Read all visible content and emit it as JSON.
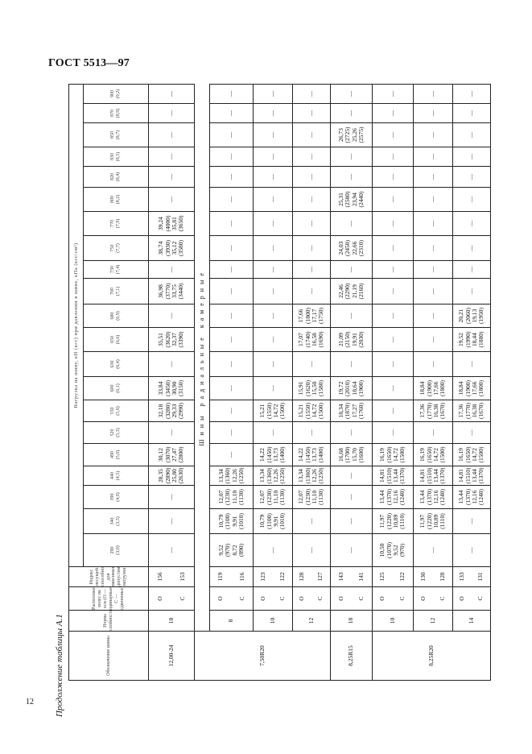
{
  "header": {
    "doc_title": "ГОСТ 5513—97",
    "page_number": "12",
    "caption": "Продолжение таблицы А.1"
  },
  "table": {
    "col_designation": "Обозначение шины",
    "col_ply": "Норма слойности",
    "col_position": "Расположение колес на оси (О — одинарные, С — сдвоенные)",
    "col_index": "Индекс несущей способности для максимально допустимой нагрузки",
    "load_title": "Нагрузка на шину, кН (кгс) при давлении в шине, кПа (кгс/см²)",
    "pressures": [
      {
        "kpa": "290",
        "kgf": "(3,0)"
      },
      {
        "kpa": "340",
        "kgf": "(3,5)"
      },
      {
        "kpa": "390",
        "kgf": "(4,0)"
      },
      {
        "kpa": "440",
        "kgf": "(4,5)"
      },
      {
        "kpa": "490",
        "kgf": "(5,0)"
      },
      {
        "kpa": "520",
        "kgf": "(5,3)"
      },
      {
        "kpa": "550",
        "kgf": "(5,6)"
      },
      {
        "kpa": "600",
        "kgf": "(6,1)"
      },
      {
        "kpa": "630",
        "kgf": "(6,4)"
      },
      {
        "kpa": "650",
        "kgf": "(6,6)"
      },
      {
        "kpa": "680",
        "kgf": "(6,9)"
      },
      {
        "kpa": "700",
        "kgf": "(7,1)"
      },
      {
        "kpa": "730",
        "kgf": "(7,4)"
      },
      {
        "kpa": "750",
        "kgf": "(7,7)"
      },
      {
        "kpa": "770",
        "kgf": "(7,9)"
      },
      {
        "kpa": "800",
        "kgf": "(8,2)"
      },
      {
        "kpa": "820",
        "kgf": "(8,4)"
      },
      {
        "kpa": "830",
        "kgf": "(8,5)"
      },
      {
        "kpa": "850",
        "kgf": "(8,7)"
      },
      {
        "kpa": "870",
        "kgf": "(8,9)"
      },
      {
        "kpa": "900",
        "kgf": "(9,2)"
      }
    ],
    "dash": "—",
    "section_title": "Шины радиальные камерные",
    "groups": [
      {
        "designation": "12,00-24",
        "ply": "18",
        "positions": [
          "О",
          "С"
        ],
        "index": [
          "156",
          "153"
        ],
        "loads": [
          null,
          null,
          null,
          [
            "28,35",
            "(2890)",
            "25,80",
            "(2630)"
          ],
          [
            "30,12",
            "(3070)",
            "27,47",
            "(2800)"
          ],
          null,
          [
            "32,18",
            "(3280)",
            "29,33",
            "(2990)"
          ],
          [
            "33,84",
            "(3450)",
            "30,90",
            "(3150)"
          ],
          null,
          [
            "35,51",
            "(3620)",
            "32,37",
            "(3390)"
          ],
          null,
          [
            "36,98",
            "(3770)",
            "33,75",
            "(3440)"
          ],
          null,
          [
            "38,74",
            "(3930)",
            "35,12",
            "(3580)"
          ],
          [
            "39,24",
            "(4000)",
            "35,81",
            "(3650)"
          ],
          null,
          null,
          null,
          null,
          null,
          null
        ]
      },
      {
        "designation": "7,50R20",
        "ply": "8",
        "positions": [
          "О",
          "С"
        ],
        "index": [
          "119",
          "116"
        ],
        "loads": [
          [
            "9,52",
            "(970)",
            "8,72",
            "(890)"
          ],
          [
            "10,79",
            "(1100)",
            "9,91",
            "(1010)"
          ],
          [
            "12,07",
            "(1230)",
            "11,10",
            "(1130)"
          ],
          [
            "13,34",
            "(1360)",
            "12,26",
            "(1250)"
          ],
          null,
          null,
          null,
          null,
          null,
          null,
          null,
          null,
          null,
          null,
          null,
          null,
          null,
          null,
          null,
          null,
          null
        ]
      },
      {
        "designation": "7,50R20",
        "ply": "10",
        "positions": [
          "О",
          "С"
        ],
        "index": [
          "123",
          "122"
        ],
        "loads": [
          null,
          [
            "10,79",
            "(1100)",
            "9,91",
            "(1010)"
          ],
          [
            "12,07",
            "(1230)",
            "11,10",
            "(1130)"
          ],
          [
            "13,34",
            "(1360)",
            "12,26",
            "(1250)"
          ],
          [
            "14,22",
            "(1450)",
            "13,73",
            "(1400)"
          ],
          null,
          [
            "15,21",
            "(1550)",
            "14,72",
            "(1500)"
          ],
          null,
          null,
          null,
          null,
          null,
          null,
          null,
          null,
          null,
          null,
          null,
          null,
          null,
          null
        ]
      },
      {
        "designation": "7,50R20",
        "ply": "12",
        "positions": [
          "О",
          "С"
        ],
        "index": [
          "128",
          "127"
        ],
        "loads": [
          null,
          null,
          [
            "12,07",
            "(1230)",
            "11,10",
            "(1130)"
          ],
          [
            "13,34",
            "(1360)",
            "12,26",
            "(1250)"
          ],
          [
            "14,22",
            "(1450)",
            "13,73",
            "(1400)"
          ],
          null,
          [
            "15,21",
            "(1550)",
            "14,72",
            "(1500)"
          ],
          [
            "15,91",
            "(1620)",
            "15,50",
            "(1580)"
          ],
          null,
          [
            "17,07",
            "(1740)",
            "16,58",
            "(1690)"
          ],
          [
            "17,66",
            "(1800)",
            "17,17",
            "(1750)"
          ],
          null,
          null,
          null,
          null,
          null,
          null,
          null,
          null,
          null,
          null
        ]
      },
      {
        "designation": "8,25R15",
        "ply": "18",
        "positions": [
          "О",
          "С"
        ],
        "index": [
          "143",
          "141"
        ],
        "loads": [
          null,
          null,
          null,
          null,
          [
            "16,68",
            "(1700)",
            "15,70",
            "(1600)"
          ],
          null,
          [
            "18,34",
            "(1870)",
            "17,27",
            "(1760)"
          ],
          [
            "19,72",
            "(2010)",
            "18,64",
            "(1900)"
          ],
          null,
          [
            "21,09",
            "(2150)",
            "19,91",
            "(2030)"
          ],
          null,
          [
            "22,46",
            "(2290)",
            "21,19",
            "(2160)"
          ],
          null,
          [
            "24,03",
            "(2450)",
            "22,66",
            "(2310)"
          ],
          null,
          [
            "25,31",
            "(2580)",
            "23,94",
            "(2440)"
          ],
          null,
          null,
          [
            "26,73",
            "(2725)",
            "25,26",
            "(2575)"
          ],
          null,
          null
        ]
      },
      {
        "designation": "8,25R20",
        "ply": "10",
        "positions": [
          "О",
          "С"
        ],
        "index": [
          "125",
          "122"
        ],
        "loads": [
          [
            "10,50",
            "(1070)",
            "9,52",
            "(970)"
          ],
          [
            "11,97",
            "(1220)",
            "10,89",
            "(1110)"
          ],
          [
            "13,44",
            "(1370)",
            "12,16",
            "(1240)"
          ],
          [
            "14,81",
            "(1510)",
            "13,44",
            "(1370)"
          ],
          [
            "16,19",
            "(1650)",
            "14,72",
            "(1500)"
          ],
          null,
          null,
          null,
          null,
          null,
          null,
          null,
          null,
          null,
          null,
          null,
          null,
          null,
          null,
          null,
          null
        ]
      },
      {
        "designation": "8,25R20",
        "ply": "12",
        "positions": [
          "О",
          "С"
        ],
        "index": [
          "130",
          "128"
        ],
        "loads": [
          null,
          [
            "11,97",
            "(1220)",
            "10,89",
            "(1110)"
          ],
          [
            "13,44",
            "(1370)",
            "12,16",
            "(1240)"
          ],
          [
            "14,81",
            "(1510)",
            "13,44",
            "(1370)"
          ],
          [
            "16,19",
            "(1650)",
            "14,72",
            "(1500)"
          ],
          null,
          [
            "17,36",
            "(1770)",
            "16,38",
            "(1670)"
          ],
          [
            "18,84",
            "(1900)",
            "17,66",
            "(1800)"
          ],
          null,
          null,
          null,
          null,
          null,
          null,
          null,
          null,
          null,
          null,
          null,
          null,
          null
        ]
      },
      {
        "designation": "8,25R20",
        "ply": "14",
        "positions": [
          "О",
          "С"
        ],
        "index": [
          "133",
          "131"
        ],
        "loads": [
          null,
          null,
          [
            "13,44",
            "(1370)",
            "12,16",
            "(1240)"
          ],
          [
            "14,81",
            "(1510)",
            "13,44",
            "(1370)"
          ],
          [
            "16,19",
            "(1650)",
            "14,72",
            "(1500)"
          ],
          null,
          [
            "17,36",
            "(1770)",
            "16,38",
            "(1670)"
          ],
          [
            "18,84",
            "(1900)",
            "17,66",
            "(1800)"
          ],
          null,
          [
            "19,52",
            "(1990)",
            "18,44",
            "(1880)"
          ],
          [
            "20,21",
            "(2060)",
            "19,13",
            "(1950)"
          ],
          null,
          null,
          null,
          null,
          null,
          null,
          null,
          null,
          null,
          null
        ]
      }
    ]
  }
}
